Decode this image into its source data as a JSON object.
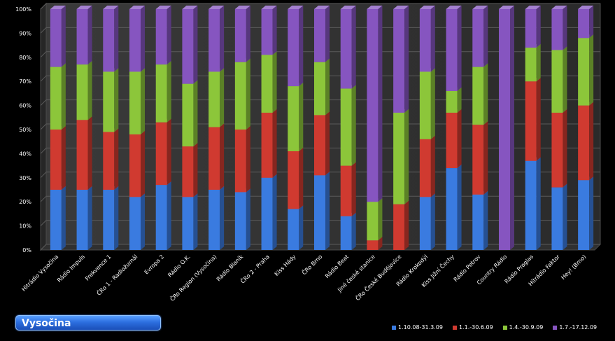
{
  "region": {
    "label": "Vysočina"
  },
  "chart_data": {
    "type": "bar",
    "stacked": "percent",
    "title": "",
    "xlabel": "",
    "ylabel": "",
    "ylim": [
      0,
      100
    ],
    "yticks": [
      "0%",
      "10%",
      "20%",
      "30%",
      "40%",
      "50%",
      "60%",
      "70%",
      "80%",
      "90%",
      "100%"
    ],
    "categories": [
      "Hitrádio Vysočina",
      "Rádio Impuls",
      "Frekvence 1",
      "ČRo 1 - Radiožurnál",
      "Evropa 2",
      "Rádio O.K.",
      "ČRo Region (Vysočina)",
      "Rádio Blaník",
      "ČRo 2 - Praha",
      "Kiss Hády",
      "ČRo Brno",
      "Rádio Beat",
      "Jiné české stanice",
      "ČRo České Budějovice",
      "Rádio Krokodýl",
      "Kiss Jižní Čechy",
      "Rádio Petrov",
      "Country Rádio",
      "Rádio Proglas",
      "Hitrádio Faktor",
      "Hey! (Brno)"
    ],
    "series": [
      {
        "name": "1.10.08-31.3.09",
        "color": "#3a7be0",
        "values": [
          25,
          25,
          25,
          22,
          27,
          22,
          25,
          24,
          30,
          17,
          31,
          14,
          0,
          0,
          22,
          34,
          23,
          0,
          37,
          26,
          29
        ]
      },
      {
        "name": "1.1.-30.6.09",
        "color": "#d03a30",
        "values": [
          25,
          29,
          24,
          26,
          26,
          21,
          26,
          26,
          27,
          24,
          25,
          21,
          4,
          19,
          24,
          23,
          29,
          0,
          33,
          31,
          31
        ]
      },
      {
        "name": "1.4.-30.9.09",
        "color": "#8cc63a",
        "values": [
          26,
          23,
          25,
          26,
          24,
          26,
          23,
          28,
          24,
          27,
          22,
          32,
          16,
          38,
          28,
          9,
          24,
          0,
          14,
          26,
          28
        ]
      },
      {
        "name": "1.7.-17.12.09",
        "color": "#8655c0",
        "values": [
          24,
          23,
          26,
          26,
          23,
          31,
          26,
          22,
          19,
          32,
          22,
          33,
          80,
          43,
          26,
          34,
          24,
          100,
          16,
          17,
          12
        ]
      }
    ],
    "legend_position": "bottom-right"
  }
}
